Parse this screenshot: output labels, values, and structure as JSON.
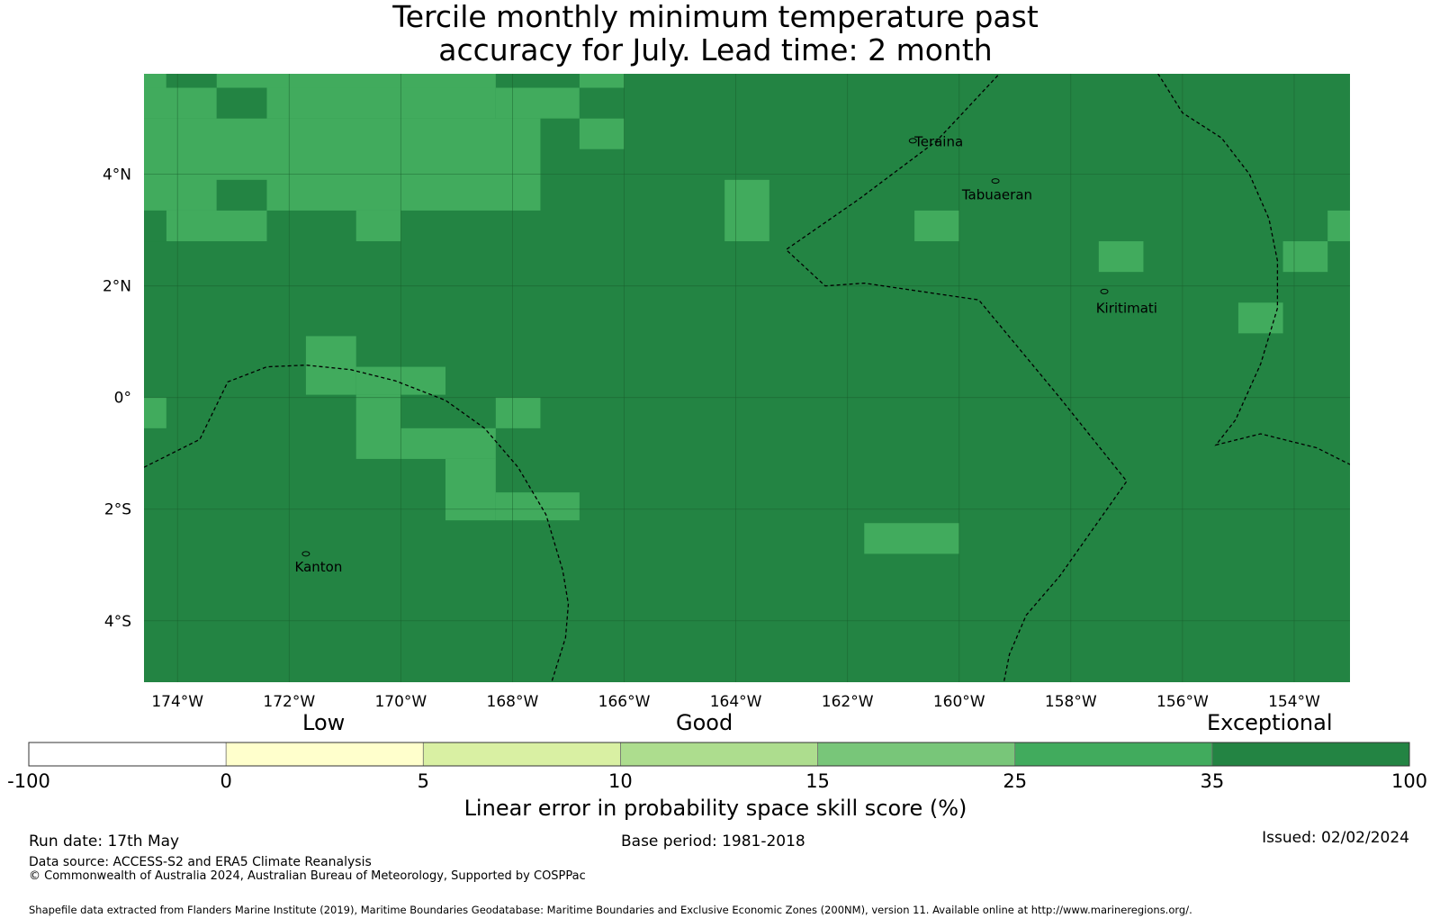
{
  "title": {
    "line1": "Tercile monthly minimum temperature past",
    "line2": "accuracy for July. Lead time: 2 month"
  },
  "map": {
    "lon_range": [
      -174.6,
      -153.0
    ],
    "lat_range": [
      -5.1,
      5.8
    ],
    "x_ticks": [
      {
        "lon": -174,
        "label": "174°W"
      },
      {
        "lon": -172,
        "label": "172°W"
      },
      {
        "lon": -170,
        "label": "170°W"
      },
      {
        "lon": -168,
        "label": "168°W"
      },
      {
        "lon": -166,
        "label": "166°W"
      },
      {
        "lon": -164,
        "label": "164°W"
      },
      {
        "lon": -162,
        "label": "162°W"
      },
      {
        "lon": -160,
        "label": "160°W"
      },
      {
        "lon": -158,
        "label": "158°W"
      },
      {
        "lon": -156,
        "label": "156°W"
      },
      {
        "lon": -154,
        "label": "154°W"
      }
    ],
    "y_ticks": [
      {
        "lat": 4,
        "label": "4°N"
      },
      {
        "lat": 2,
        "label": "2°N"
      },
      {
        "lat": 0,
        "label": "0°"
      },
      {
        "lat": -2,
        "label": "2°S"
      },
      {
        "lat": -4,
        "label": "4°S"
      }
    ],
    "background_color": "#238443",
    "class_colors": {
      "25-35": "#41ab5d",
      "35-100": "#238443"
    },
    "field_25_35_cells": [
      {
        "lon": [
          -174.6,
          -174.2
        ],
        "lat": [
          5.55,
          5.8
        ]
      },
      {
        "lon": [
          -173.3,
          -166.8
        ],
        "lat": [
          5.55,
          5.8
        ]
      },
      {
        "lon": [
          -166.8,
          -166.0
        ],
        "lat": [
          5.55,
          5.8
        ]
      },
      {
        "lon": [
          -174.6,
          -168.3
        ],
        "lat": [
          5.0,
          5.55
        ]
      },
      {
        "lon": [
          -168.3,
          -166.8
        ],
        "lat": [
          5.0,
          5.55
        ]
      },
      {
        "lon": [
          -174.6,
          -167.5
        ],
        "lat": [
          3.35,
          5.0
        ]
      },
      {
        "lon": [
          -166.8,
          -166.0
        ],
        "lat": [
          4.45,
          5.0
        ]
      },
      {
        "lon": [
          -174.2,
          -172.4
        ],
        "lat": [
          2.8,
          3.35
        ]
      },
      {
        "lon": [
          -170.8,
          -170.0
        ],
        "lat": [
          2.8,
          3.35
        ]
      },
      {
        "lon": [
          -164.2,
          -163.4
        ],
        "lat": [
          2.8,
          3.9
        ]
      },
      {
        "lon": [
          -160.8,
          -160.0
        ],
        "lat": [
          2.8,
          3.35
        ]
      },
      {
        "lon": [
          -157.5,
          -156.7
        ],
        "lat": [
          2.25,
          2.8
        ]
      },
      {
        "lon": [
          -154.2,
          -153.4
        ],
        "lat": [
          2.25,
          2.8
        ]
      },
      {
        "lon": [
          -153.4,
          -153.0
        ],
        "lat": [
          2.8,
          3.35
        ]
      },
      {
        "lon": [
          -155.0,
          -154.2
        ],
        "lat": [
          1.15,
          1.7
        ]
      },
      {
        "lon": [
          -171.7,
          -170.8
        ],
        "lat": [
          0.05,
          1.1
        ]
      },
      {
        "lon": [
          -170.8,
          -169.2
        ],
        "lat": [
          0.05,
          0.55
        ]
      },
      {
        "lon": [
          -174.6,
          -174.2
        ],
        "lat": [
          -0.55,
          0.0
        ]
      },
      {
        "lon": [
          -170.8,
          -170.0
        ],
        "lat": [
          -1.1,
          0.05
        ]
      },
      {
        "lon": [
          -168.3,
          -167.5
        ],
        "lat": [
          -0.55,
          0.0
        ]
      },
      {
        "lon": [
          -170.0,
          -168.3
        ],
        "lat": [
          -1.1,
          -0.55
        ]
      },
      {
        "lon": [
          -169.2,
          -168.3
        ],
        "lat": [
          -2.2,
          -1.1
        ]
      },
      {
        "lon": [
          -168.3,
          -166.8
        ],
        "lat": [
          -2.2,
          -1.7
        ]
      },
      {
        "lon": [
          -161.7,
          -160.0
        ],
        "lat": [
          -2.8,
          -2.25
        ]
      }
    ],
    "field_35_100_cells": [
      {
        "lon": [
          -174.2,
          -173.3
        ],
        "lat": [
          5.55,
          5.8
        ]
      },
      {
        "lon": [
          -173.3,
          -172.4
        ],
        "lat": [
          5.0,
          5.55
        ]
      },
      {
        "lon": [
          -173.3,
          -172.4
        ],
        "lat": [
          3.35,
          3.9
        ]
      },
      {
        "lon": [
          -168.3,
          -166.8
        ],
        "lat": [
          5.55,
          5.8
        ]
      },
      {
        "lon": [
          -166.8,
          -166.0
        ],
        "lat": [
          5.0,
          5.55
        ]
      },
      {
        "lon": [
          -174.6,
          -174.2
        ],
        "lat": [
          2.8,
          3.35
        ]
      }
    ],
    "places": [
      {
        "name": "Teraina",
        "lon": -160.83,
        "lat": 4.6,
        "label_lon": -160.8,
        "label_lat": 4.5
      },
      {
        "name": "Tabuaeran",
        "lon": -159.35,
        "lat": 3.88,
        "label_lon": -159.95,
        "label_lat": 3.55
      },
      {
        "name": "Kiritimati",
        "lon": -157.4,
        "lat": 1.9,
        "label_lon": -157.55,
        "label_lat": 1.52
      },
      {
        "name": "Kanton",
        "lon": -171.7,
        "lat": -2.8,
        "label_lon": -171.9,
        "label_lat": -3.12
      }
    ],
    "eez_boundaries": [
      [
        [
          -174.6,
          -1.25
        ],
        [
          -173.6,
          -0.75
        ],
        [
          -173.1,
          0.28
        ],
        [
          -172.4,
          0.55
        ],
        [
          -171.7,
          0.58
        ],
        [
          -170.9,
          0.5
        ],
        [
          -170.1,
          0.3
        ],
        [
          -169.2,
          -0.05
        ],
        [
          -168.5,
          -0.55
        ],
        [
          -167.9,
          -1.25
        ],
        [
          -167.4,
          -2.1
        ],
        [
          -167.1,
          -3.1
        ],
        [
          -167.0,
          -3.7
        ],
        [
          -167.05,
          -4.3
        ],
        [
          -167.3,
          -5.1
        ]
      ],
      [
        [
          -159.0,
          6.1
        ],
        [
          -160.4,
          4.6
        ],
        [
          -161.8,
          3.55
        ],
        [
          -163.1,
          2.65
        ],
        [
          -162.4,
          2.0
        ],
        [
          -161.7,
          2.05
        ],
        [
          -159.65,
          1.75
        ],
        [
          -158.2,
          0.0
        ],
        [
          -157.0,
          -1.5
        ],
        [
          -158.2,
          -3.2
        ],
        [
          -158.8,
          -3.9
        ],
        [
          -159.1,
          -4.6
        ],
        [
          -159.2,
          -5.1
        ]
      ],
      [
        [
          -156.5,
          5.9
        ],
        [
          -156.0,
          5.1
        ],
        [
          -155.3,
          4.65
        ],
        [
          -154.8,
          4.0
        ],
        [
          -154.45,
          3.2
        ],
        [
          -154.3,
          2.45
        ],
        [
          -154.3,
          1.6
        ],
        [
          -154.6,
          0.6
        ],
        [
          -155.05,
          -0.4
        ],
        [
          -155.4,
          -0.85
        ],
        [
          -154.6,
          -0.65
        ],
        [
          -153.6,
          -0.9
        ],
        [
          -153.0,
          -1.2
        ]
      ]
    ]
  },
  "colorbar": {
    "category_labels": {
      "low": "Low",
      "good": "Good",
      "exceptional": "Exceptional"
    },
    "classes": [
      {
        "from": "-100",
        "to": "0",
        "color": "#ffffff"
      },
      {
        "from": "0",
        "to": "5",
        "color": "#ffffcc"
      },
      {
        "from": "5",
        "to": "10",
        "color": "#d9f0a3"
      },
      {
        "from": "10",
        "to": "15",
        "color": "#addd8e"
      },
      {
        "from": "15",
        "to": "25",
        "color": "#78c679"
      },
      {
        "from": "25",
        "to": "35",
        "color": "#41ab5d"
      },
      {
        "from": "35",
        "to": "100",
        "color": "#238443"
      }
    ],
    "tick_labels": [
      "-100",
      "0",
      "5",
      "10",
      "15",
      "25",
      "35",
      "100"
    ],
    "label": "Linear error in probability space skill score (%)"
  },
  "footer": {
    "run_date": "Run date: 17th May",
    "base_period": "Base period: 1981-2018",
    "issued": "Issued: 02/02/2024",
    "data_source": "Data source: ACCESS-S2 and ERA5 Climate Reanalysis",
    "copyright": "© Commonwealth of Australia 2024, Australian Bureau of Meteorology, Supported by COSPPac",
    "shapefile": "Shapefile data extracted from Flanders Marine Institute (2019), Maritime Boundaries Geodatabase: Maritime Boundaries and Exclusive Economic Zones (200NM), version 11. Available online at http://www.marineregions.org/."
  }
}
